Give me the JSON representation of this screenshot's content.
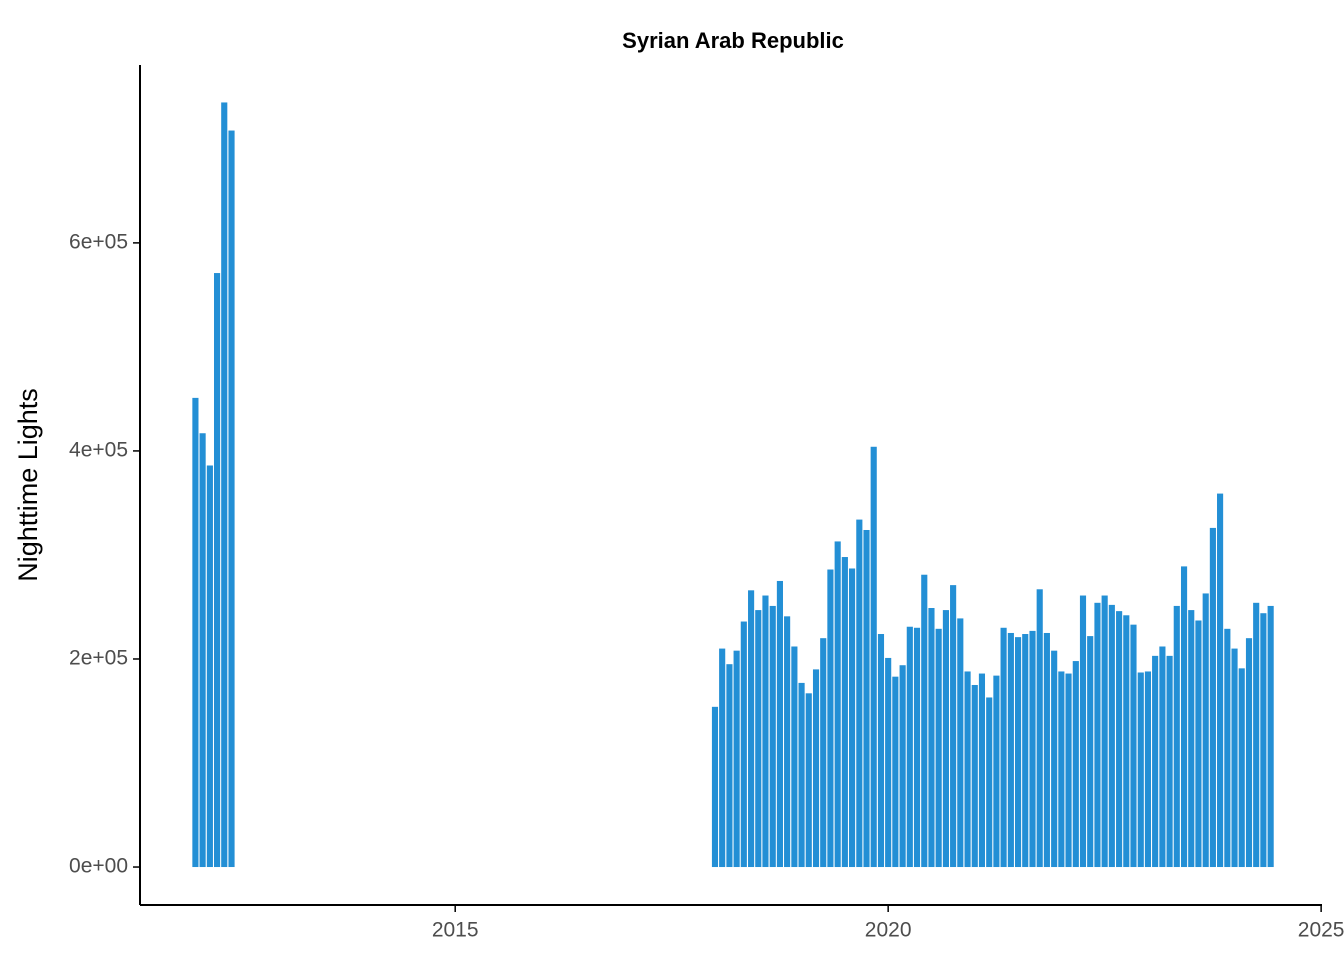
{
  "chart_data": {
    "type": "bar",
    "title": "Syrian Arab Republic",
    "y_label": "Nighttime Lights",
    "color": "#238fd5",
    "x": [
      2012,
      2012.083,
      2012.167,
      2012.25,
      2012.333,
      2012.417,
      2018,
      2018.083,
      2018.167,
      2018.25,
      2018.333,
      2018.417,
      2018.5,
      2018.583,
      2018.667,
      2018.75,
      2018.833,
      2018.917,
      2019,
      2019.083,
      2019.167,
      2019.25,
      2019.333,
      2019.417,
      2019.5,
      2019.583,
      2019.667,
      2019.75,
      2019.833,
      2019.917,
      2020,
      2020.083,
      2020.167,
      2020.25,
      2020.333,
      2020.417,
      2020.5,
      2020.583,
      2020.667,
      2020.75,
      2020.833,
      2020.917,
      2021,
      2021.083,
      2021.167,
      2021.25,
      2021.333,
      2021.417,
      2021.5,
      2021.583,
      2021.667,
      2021.75,
      2021.833,
      2021.917,
      2022,
      2022.083,
      2022.167,
      2022.25,
      2022.333,
      2022.417,
      2022.5,
      2022.583,
      2022.667,
      2022.75,
      2022.833,
      2022.917,
      2023,
      2023.083,
      2023.167,
      2023.25,
      2023.333,
      2023.417,
      2023.5,
      2023.583,
      2023.667,
      2023.75,
      2023.833,
      2023.917,
      2024,
      2024.083,
      2024.167,
      2024.25,
      2024.333,
      2024.417
    ],
    "values": [
      451000,
      417000,
      386000,
      571000,
      735000,
      708000,
      154000,
      210000,
      195000,
      208000,
      236000,
      266000,
      247000,
      261000,
      251000,
      275000,
      241000,
      212000,
      177000,
      167000,
      190000,
      220000,
      286000,
      313000,
      298000,
      287000,
      334000,
      324000,
      404000,
      224000,
      201000,
      183000,
      194000,
      231000,
      230000,
      281000,
      249000,
      229000,
      247000,
      271000,
      239000,
      188000,
      175000,
      186000,
      163000,
      184000,
      230000,
      225000,
      221000,
      224000,
      227000,
      267000,
      225000,
      208000,
      188000,
      186000,
      198000,
      261000,
      222000,
      254000,
      261000,
      252000,
      246000,
      242000,
      233000,
      187000,
      188000,
      203000,
      212000,
      203000,
      251000,
      289000,
      247000,
      237000,
      263000,
      326000,
      359000,
      229000,
      210000,
      191000,
      220000,
      254000,
      244000,
      251000
    ],
    "xlim": [
      2011.36,
      2025.01
    ],
    "xticks": [
      2015,
      2020,
      2025
    ],
    "ylim": [
      -36500,
      771000
    ],
    "yticks": [
      {
        "value": 0,
        "label": "0e+00"
      },
      {
        "value": 200000,
        "label": "2e+05"
      },
      {
        "value": 400000,
        "label": "4e+05"
      },
      {
        "value": 600000,
        "label": "6e+05"
      }
    ]
  }
}
